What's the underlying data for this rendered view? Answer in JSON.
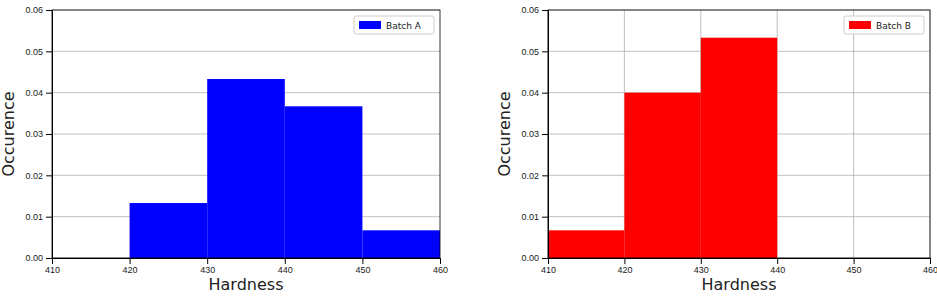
{
  "chart_data": [
    {
      "type": "histogram",
      "x_label": "Hardness",
      "y_label": "Occurence",
      "bins": [
        420,
        430,
        440,
        450,
        460
      ],
      "series": [
        {
          "name": "Batch A",
          "color": "#0000ff",
          "values": [
            0.0133,
            0.0433,
            0.0367,
            0.0067
          ]
        }
      ],
      "xlim": [
        410,
        460
      ],
      "xticks": [
        410,
        420,
        430,
        440,
        450,
        460
      ],
      "ylim": [
        0,
        0.06
      ],
      "yticks": [
        {
          "value": 0,
          "label": "0.00"
        },
        {
          "value": 0.01,
          "label": "0.01"
        },
        {
          "value": 0.02,
          "label": "0.02"
        },
        {
          "value": 0.03,
          "label": "0.03"
        },
        {
          "value": 0.04,
          "label": "0.04"
        },
        {
          "value": 0.05,
          "label": "0.05"
        },
        {
          "value": 0.06,
          "label": "0.06"
        }
      ],
      "grid": "y",
      "legend": "upper right"
    },
    {
      "type": "histogram",
      "x_label": "Hardness",
      "y_label": "Occurence",
      "bins": [
        410,
        420,
        430,
        440
      ],
      "series": [
        {
          "name": "Batch B",
          "color": "#ff0000",
          "values": [
            0.0067,
            0.04,
            0.0533
          ]
        }
      ],
      "xlim": [
        410,
        460
      ],
      "xticks": [
        410,
        420,
        430,
        440,
        450,
        460
      ],
      "ylim": [
        0,
        0.06
      ],
      "yticks": [
        {
          "value": 0,
          "label": "0.00"
        },
        {
          "value": 0.01,
          "label": "0.01"
        },
        {
          "value": 0.02,
          "label": "0.02"
        },
        {
          "value": 0.03,
          "label": "0.03"
        },
        {
          "value": 0.04,
          "label": "0.04"
        },
        {
          "value": 0.05,
          "label": "0.05"
        },
        {
          "value": 0.06,
          "label": "0.06"
        }
      ],
      "grid": true,
      "legend": "upper right"
    }
  ]
}
